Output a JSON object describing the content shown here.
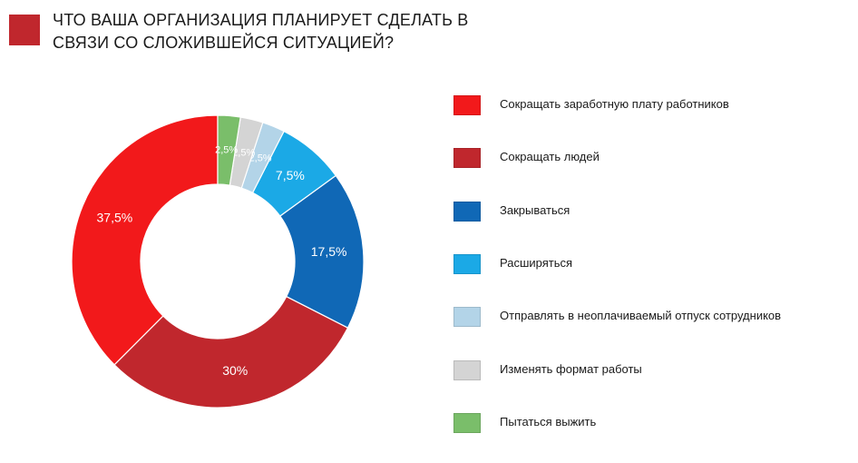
{
  "header": {
    "title_lines": [
      "ЧТО ВАША ОРГАНИЗАЦИЯ ПЛАНИРУЕТ СДЕЛАТЬ В",
      "СВЯЗИ СО СЛОЖИВШЕЙСЯ СИТУАЦИЕЙ?"
    ],
    "marker_color": "#C0272D"
  },
  "chart_data": {
    "type": "pie",
    "variant": "donut",
    "title": "ЧТО ВАША ОРГАНИЗАЦИЯ ПЛАНИРУЕТ СДЕЛАТЬ В СВЯЗИ СО СЛОЖИВШЕЙСЯ СИТУАЦИЕЙ?",
    "legend_position": "right",
    "categories": [
      "Сокращать заработную плату работников",
      "Сокращать людей",
      "Закрываться",
      "Расширяться",
      "Отправлять в неоплачиваемый отпуск сотрудников",
      "Изменять формат работы",
      "Пытаться выжить"
    ],
    "values": [
      37.5,
      30,
      17.5,
      7.5,
      2.5,
      2.5,
      2.5
    ],
    "labels": [
      "37,5%",
      "30%",
      "17,5%",
      "7,5%",
      "2,5%",
      "2,5%",
      "2,5%"
    ],
    "colors": [
      "#F2191B",
      "#C0272D",
      "#1068B6",
      "#1BA9E6",
      "#B3D4E8",
      "#D4D4D4",
      "#7ABE6A"
    ],
    "start_angle_deg": 90
  }
}
